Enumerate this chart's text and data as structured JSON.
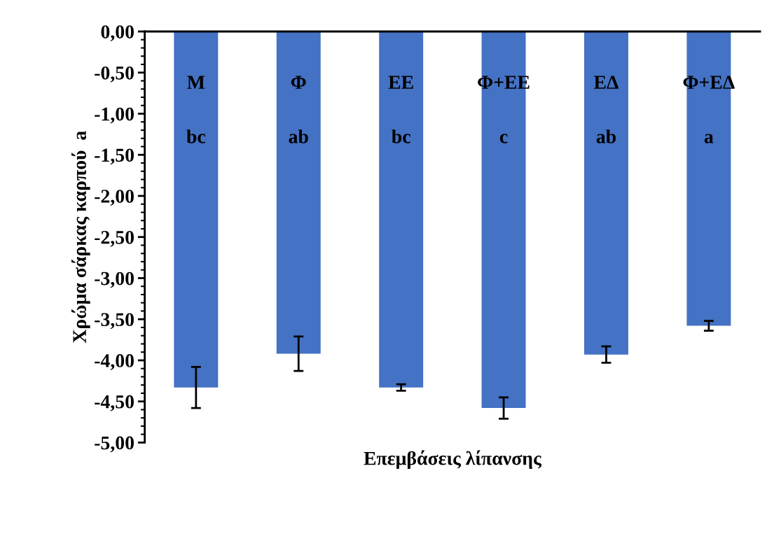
{
  "chart_data": {
    "type": "bar",
    "xlabel": "Επεμβάσεις λίπανσης",
    "ylabel": "Χρώμα σάρκας καρπού  a",
    "categories": [
      "Μ",
      "Φ",
      "ΕΕ",
      "Φ+ΕΕ",
      "ΕΔ",
      "Φ+ΕΔ"
    ],
    "values": [
      -4.33,
      -3.92,
      -4.33,
      -4.58,
      -3.93,
      -3.58
    ],
    "errors": [
      0.25,
      0.21,
      0.04,
      0.13,
      0.1,
      0.06
    ],
    "color": "#4472c4",
    "ylim": [
      -5,
      0
    ],
    "yticks": [
      {
        "value": 0,
        "label": "0,00"
      },
      {
        "value": -0.5,
        "label": "-0,50"
      },
      {
        "value": -1,
        "label": "-1,00"
      },
      {
        "value": -1.5,
        "label": "-1,50"
      },
      {
        "value": -2,
        "label": "-2,00"
      },
      {
        "value": -2.5,
        "label": "-2,50"
      },
      {
        "value": -3,
        "label": "-3,00"
      },
      {
        "value": -3.5,
        "label": "-3,50"
      },
      {
        "value": -4,
        "label": "-4,00"
      },
      {
        "value": -4.5,
        "label": "-4,50"
      },
      {
        "value": -5,
        "label": "-5,00"
      }
    ],
    "annotations": [
      "bc",
      "ab",
      "bc",
      "c",
      "ab",
      "a"
    ],
    "grid": false,
    "legend": false
  }
}
